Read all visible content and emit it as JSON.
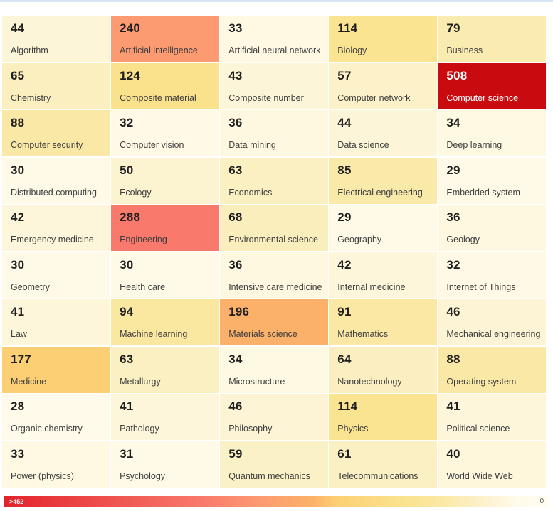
{
  "theme": {
    "top_strip_color": "#d9e4f4",
    "background": "#ffffff",
    "number_color": "#1f1f1f",
    "label_color": "#3f3f3f",
    "light_text_color": "#ffffff",
    "light_text_threshold": 400
  },
  "chart_data": {
    "type": "heatmap",
    "title": "",
    "grid_columns": 5,
    "items": [
      {
        "label": "Algorithm",
        "value": 44
      },
      {
        "label": "Artificial intelligence",
        "value": 240
      },
      {
        "label": "Artificial neural network",
        "value": 33
      },
      {
        "label": "Biology",
        "value": 114
      },
      {
        "label": "Business",
        "value": 79
      },
      {
        "label": "Chemistry",
        "value": 65
      },
      {
        "label": "Composite material",
        "value": 124
      },
      {
        "label": "Composite number",
        "value": 43
      },
      {
        "label": "Computer network",
        "value": 57
      },
      {
        "label": "Computer science",
        "value": 508
      },
      {
        "label": "Computer security",
        "value": 88
      },
      {
        "label": "Computer vision",
        "value": 32
      },
      {
        "label": "Data mining",
        "value": 36
      },
      {
        "label": "Data science",
        "value": 44
      },
      {
        "label": "Deep learning",
        "value": 34
      },
      {
        "label": "Distributed computing",
        "value": 30
      },
      {
        "label": "Ecology",
        "value": 50
      },
      {
        "label": "Economics",
        "value": 63
      },
      {
        "label": "Electrical engineering",
        "value": 85
      },
      {
        "label": "Embedded system",
        "value": 29
      },
      {
        "label": "Emergency medicine",
        "value": 42
      },
      {
        "label": "Engineering",
        "value": 288
      },
      {
        "label": "Environmental science",
        "value": 68
      },
      {
        "label": "Geography",
        "value": 29
      },
      {
        "label": "Geology",
        "value": 36
      },
      {
        "label": "Geometry",
        "value": 30
      },
      {
        "label": "Health care",
        "value": 30
      },
      {
        "label": "Intensive care medicine",
        "value": 36
      },
      {
        "label": "Internal medicine",
        "value": 42
      },
      {
        "label": "Internet of Things",
        "value": 32
      },
      {
        "label": "Law",
        "value": 41
      },
      {
        "label": "Machine learning",
        "value": 94
      },
      {
        "label": "Materials science",
        "value": 196
      },
      {
        "label": "Mathematics",
        "value": 91
      },
      {
        "label": "Mechanical engineering",
        "value": 46
      },
      {
        "label": "Medicine",
        "value": 177
      },
      {
        "label": "Metallurgy",
        "value": 63
      },
      {
        "label": "Microstructure",
        "value": 34
      },
      {
        "label": "Nanotechnology",
        "value": 64
      },
      {
        "label": "Operating system",
        "value": 88
      },
      {
        "label": "Organic chemistry",
        "value": 28
      },
      {
        "label": "Pathology",
        "value": 41
      },
      {
        "label": "Philosophy",
        "value": 46
      },
      {
        "label": "Physics",
        "value": 114
      },
      {
        "label": "Political science",
        "value": 41
      },
      {
        "label": "Power (physics)",
        "value": 33
      },
      {
        "label": "Psychology",
        "value": 31
      },
      {
        "label": "Quantum mechanics",
        "value": 59
      },
      {
        "label": "Telecommunications",
        "value": 61
      },
      {
        "label": "World Wide Web",
        "value": 40
      }
    ],
    "legend": {
      "max_label": ">452",
      "min_label": "0",
      "max_value": 452,
      "min_value": 0
    },
    "colormap_stops": [
      {
        "value": 0,
        "color": "#FFFDF4"
      },
      {
        "value": 30,
        "color": "#FFFAE8"
      },
      {
        "value": 50,
        "color": "#FCF3D0"
      },
      {
        "value": 65,
        "color": "#FBEFC0"
      },
      {
        "value": 88,
        "color": "#FAE9A6"
      },
      {
        "value": 114,
        "color": "#FAE492"
      },
      {
        "value": 124,
        "color": "#FAE28C"
      },
      {
        "value": 177,
        "color": "#FDCF74"
      },
      {
        "value": 196,
        "color": "#FBB169"
      },
      {
        "value": 240,
        "color": "#FC9A72"
      },
      {
        "value": 288,
        "color": "#F97A6C"
      },
      {
        "value": 452,
        "color": "#E2232B"
      },
      {
        "value": 508,
        "color": "#C90B0F"
      }
    ]
  }
}
